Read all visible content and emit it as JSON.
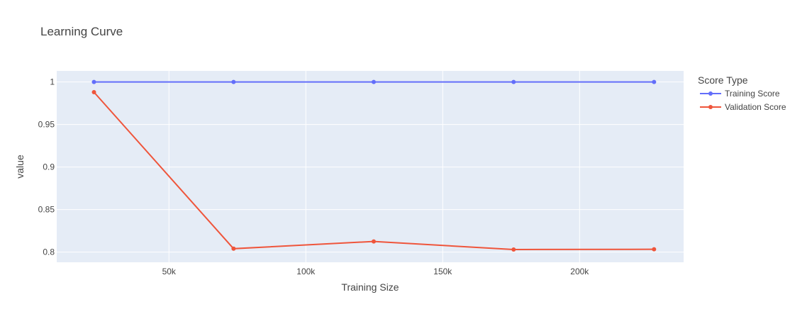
{
  "chart_data": {
    "type": "line",
    "title": "Learning Curve",
    "xlabel": "Training Size",
    "ylabel": "value",
    "xlim": [
      9000,
      238000
    ],
    "ylim": [
      0.788,
      1.013
    ],
    "x_ticks": [
      50000,
      100000,
      150000,
      200000
    ],
    "x_tick_labels": [
      "50k",
      "100k",
      "150k",
      "200k"
    ],
    "y_ticks": [
      0.8,
      0.85,
      0.9,
      0.95,
      1
    ],
    "y_tick_labels": [
      "0.8",
      "0.85",
      "0.9",
      "0.95",
      "1"
    ],
    "grid": true,
    "legend_title": "Score Type",
    "legend_position": "right",
    "x": [
      22600,
      73600,
      124800,
      175900,
      227200
    ],
    "series": [
      {
        "name": "Training Score",
        "color": "#636efa",
        "values": [
          1.0,
          1.0,
          1.0,
          1.0,
          1.0
        ]
      },
      {
        "name": "Validation Score",
        "color": "#ef553b",
        "values": [
          0.988,
          0.804,
          0.8125,
          0.803,
          0.8033
        ]
      }
    ],
    "colors": {
      "plot_bg": "#e5ecf6",
      "grid": "#ffffff",
      "text": "#444444"
    }
  }
}
